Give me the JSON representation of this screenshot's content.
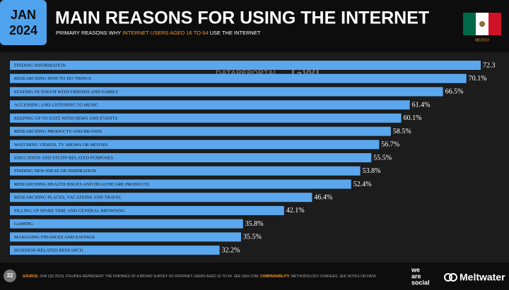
{
  "header": {
    "month": "JAN",
    "year": "2024",
    "title": "MAIN REASONS FOR USING THE INTERNET",
    "subtitle_parts": [
      "PRIMARY REASONS WHY ",
      "INTERNET USERS AGED 16 TO 64",
      " USE THE INTERNET"
    ],
    "country": "MEXICO"
  },
  "watermark": [
    "DATAREPORTAL",
    "GWI."
  ],
  "chart_data": {
    "type": "bar",
    "orientation": "horizontal",
    "color": "#5aa7ee",
    "categories": [
      "FINDING INFORMATION",
      "RESEARCHING HOW TO DO THINGS",
      "STAYING IN TOUCH WITH FRIENDS AND FAMILY",
      "ACCESSING AND LISTENING TO MUSIC",
      "KEEPING UP TO DATE WITH NEWS AND EVENTS",
      "RESEARCHING PRODUCTS AND BRANDS",
      "WATCHING VIDEOS, TV SHOWS OR MOVIES",
      "EDUCATION AND STUDY-RELATED PURPOSES",
      "FINDING NEW IDEAS OR INSPIRATION",
      "RESEARCHING HEALTH ISSUES AND HEALTHCARE PRODUCTS",
      "RESEARCHING PLACES, VACATIONS AND TRAVEL",
      "FILLING UP SPARE TIME AND GENERAL BROWSING",
      "GAMING",
      "MANAGING FINANCES AND SAVINGS",
      "BUSINESS-RELATED RESEARCH"
    ],
    "values": [
      72.3,
      70.1,
      66.5,
      61.4,
      60.1,
      58.5,
      56.7,
      55.5,
      53.8,
      52.4,
      46.4,
      42.1,
      35.8,
      35.5,
      32.2
    ],
    "value_labels": [
      "72.3",
      "70.1%",
      "66.5%",
      "61.4%",
      "60.1%",
      "58.5%",
      "56.7%",
      "55.5%",
      "53.8%",
      "52.4%",
      "46.4%",
      "42.1%",
      "35.8%",
      "35.5%",
      "32.2%"
    ]
  },
  "footer": {
    "page": "32",
    "source_label": "SOURCE:",
    "source_text": " GWI (Q3 2023). FIGURES REPRESENT THE FINDINGS OF A BROAD SURVEY OF INTERNET USERS AGED 16 TO 64. SEE GWI.COM. ",
    "comparability_label": "COMPARABILITY:",
    "comparability_text": " METHODOLOGY CHANGES. SEE NOTES ON DATA.",
    "brand1": [
      "we",
      "are",
      "social"
    ],
    "brand2": "Meltwater"
  }
}
